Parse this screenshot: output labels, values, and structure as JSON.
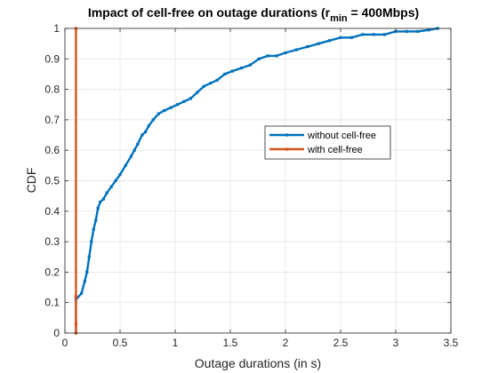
{
  "chart_data": {
    "type": "line",
    "title": {
      "main": "Impact of cell-free on outage durations (r",
      "subscript": "min",
      "suffix": " = 400Mbps)"
    },
    "xlabel": "Outage durations (in s)",
    "ylabel": "CDF",
    "xlim": [
      0,
      3.5
    ],
    "ylim": [
      0,
      1
    ],
    "xticks": [
      0,
      0.5,
      1,
      1.5,
      2,
      2.5,
      3,
      3.5
    ],
    "xtick_labels": [
      "0",
      "0.5",
      "1",
      "1.5",
      "2",
      "2.5",
      "3",
      "3.5"
    ],
    "yticks": [
      0,
      0.1,
      0.2,
      0.3,
      0.4,
      0.5,
      0.6,
      0.7,
      0.8,
      0.9,
      1
    ],
    "ytick_labels": [
      "0",
      "0.1",
      "0.2",
      "0.3",
      "0.4",
      "0.5",
      "0.6",
      "0.7",
      "0.8",
      "0.9",
      "1"
    ],
    "grid": true,
    "legend_position": "center-right",
    "series": [
      {
        "name": "without cell-free",
        "color": "#0072BD",
        "x": [
          0.1,
          0.1,
          0.15,
          0.18,
          0.2,
          0.22,
          0.24,
          0.26,
          0.28,
          0.3,
          0.32,
          0.35,
          0.38,
          0.42,
          0.46,
          0.5,
          0.55,
          0.6,
          0.63,
          0.66,
          0.7,
          0.73,
          0.76,
          0.8,
          0.85,
          0.9,
          0.96,
          1.02,
          1.08,
          1.14,
          1.2,
          1.26,
          1.32,
          1.38,
          1.45,
          1.52,
          1.6,
          1.68,
          1.76,
          1.84,
          1.92,
          2.0,
          2.1,
          2.2,
          2.3,
          2.4,
          2.5,
          2.6,
          2.7,
          2.8,
          2.9,
          3.0,
          3.1,
          3.2,
          3.3,
          3.38
        ],
        "y": [
          0.0,
          0.11,
          0.13,
          0.17,
          0.2,
          0.25,
          0.3,
          0.34,
          0.37,
          0.41,
          0.43,
          0.44,
          0.46,
          0.48,
          0.5,
          0.52,
          0.55,
          0.58,
          0.6,
          0.62,
          0.65,
          0.66,
          0.68,
          0.7,
          0.72,
          0.73,
          0.74,
          0.75,
          0.76,
          0.77,
          0.79,
          0.81,
          0.82,
          0.83,
          0.85,
          0.86,
          0.87,
          0.88,
          0.9,
          0.91,
          0.91,
          0.92,
          0.93,
          0.94,
          0.95,
          0.96,
          0.97,
          0.97,
          0.98,
          0.98,
          0.98,
          0.99,
          0.99,
          0.99,
          0.995,
          1.0
        ]
      },
      {
        "name": "with cell-free",
        "color": "#D95319",
        "x": [
          0.1,
          0.1,
          0.1,
          0.1
        ],
        "y": [
          0.0,
          0.03,
          0.12,
          1.0
        ]
      }
    ]
  }
}
